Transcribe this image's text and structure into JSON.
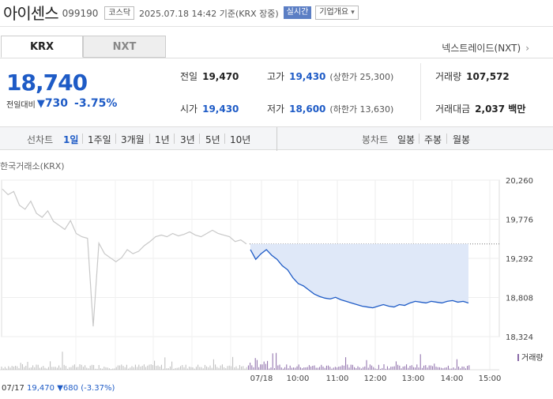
{
  "header": {
    "name": "아이센스",
    "code": "099190",
    "market_badge": "코스닥",
    "datetime": "2025.07.18 14:42 기준(KRX 장중)",
    "realtime_label": "실시간",
    "corp_label": "기업개요",
    "corp_chevron": "▾"
  },
  "tabs": [
    {
      "label": "KRX",
      "selected": true
    },
    {
      "label": "NXT",
      "selected": false
    }
  ],
  "nxt_link": {
    "label": "넥스트레이드(NXT)",
    "icon": "›"
  },
  "quote": {
    "price": "18,740",
    "diff_label": "전일대비",
    "diff_arrow": "▼",
    "diff_value": "730",
    "diff_pct": "-3.75%"
  },
  "stats": {
    "prev_close": {
      "label": "전일",
      "value": "19,470"
    },
    "high": {
      "label": "고가",
      "value": "19,430",
      "sub": "(상한가 25,300)"
    },
    "volume": {
      "label": "거래량",
      "value": "107,572"
    },
    "open": {
      "label": "시가",
      "value": "19,430"
    },
    "low": {
      "label": "저가",
      "value": "18,600",
      "sub": "(하한가 13,630)"
    },
    "amount": {
      "label": "거래대금",
      "value": "2,037 백만"
    }
  },
  "period_bar": {
    "line_label": "선차트",
    "line_items": [
      {
        "label": "1일",
        "selected": true
      },
      {
        "label": "1주일",
        "selected": false
      },
      {
        "label": "3개월",
        "selected": false
      },
      {
        "label": "1년",
        "selected": false
      },
      {
        "label": "3년",
        "selected": false
      },
      {
        "label": "5년",
        "selected": false
      },
      {
        "label": "10년",
        "selected": false
      }
    ],
    "candle_label": "봉차트",
    "candle_items": [
      {
        "label": "일봉",
        "selected": false
      },
      {
        "label": "주봉",
        "selected": false
      },
      {
        "label": "월봉",
        "selected": false
      }
    ]
  },
  "exchange_label": "한국거래소(KRX)",
  "chart_data": {
    "type": "line",
    "y_ticks": [
      "20,260",
      "19,776",
      "19,292",
      "18,808",
      "18,324"
    ],
    "ylim": [
      18324,
      20260
    ],
    "x_ticks": [
      "07/18",
      "10:00",
      "11:00",
      "12:00",
      "13:00",
      "14:00",
      "15:00"
    ],
    "previous_close": 19470,
    "previous_day_series": [
      20150,
      20080,
      20120,
      19950,
      19900,
      20000,
      19850,
      19800,
      19880,
      19750,
      19700,
      19650,
      19760,
      19600,
      19560,
      19540,
      18450,
      19480,
      19350,
      19300,
      19250,
      19300,
      19400,
      19350,
      19380,
      19450,
      19500,
      19560,
      19580,
      19560,
      19600,
      19570,
      19590,
      19620,
      19580,
      19560,
      19600,
      19640,
      19600,
      19580,
      19560,
      19500,
      19520,
      19470
    ],
    "current_series": [
      19400,
      19280,
      19350,
      19400,
      19330,
      19280,
      19200,
      19150,
      19050,
      18980,
      18950,
      18900,
      18850,
      18820,
      18800,
      18790,
      18810,
      18780,
      18760,
      18740,
      18720,
      18700,
      18690,
      18680,
      18700,
      18720,
      18700,
      18690,
      18720,
      18710,
      18740,
      18760,
      18750,
      18740,
      18760,
      18750,
      18740,
      18760,
      18770,
      18750,
      18760,
      18740
    ],
    "volume_legend": "거래량",
    "footer": {
      "date": "07/17",
      "price": "19,470",
      "arrow": "▼",
      "change": "680",
      "pct": "(-3.37%)"
    }
  },
  "colors": {
    "accent_blue": "#1e5bc6",
    "prev_line": "#c8c8c8",
    "fill": "#dfe8f8",
    "volume": "#8a6aa8"
  }
}
